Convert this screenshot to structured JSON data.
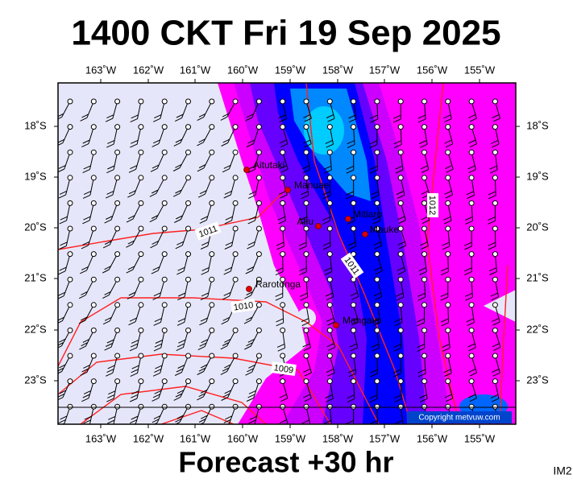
{
  "title": "1400 CKT Fri 19 Sep 2025",
  "map": {
    "lon_labels": [
      "163˚W",
      "162˚W",
      "161˚W",
      "160˚W",
      "159˚W",
      "158˚W",
      "157˚W",
      "156˚W",
      "155˚W"
    ],
    "lat_labels": [
      "18˚S",
      "19˚S",
      "20˚S",
      "21˚S",
      "22˚S",
      "23˚S"
    ],
    "places": [
      "Aitutaki",
      "Manuae",
      "Atiu",
      "Mitiaro",
      "Mauke",
      "Rarotonga",
      "Mangaia"
    ],
    "isobar_labels": [
      "1011",
      "1010",
      "1009",
      "1011",
      "1012"
    ],
    "copyright": "Copyright metvuw.com"
  },
  "footer": {
    "forecast": "Forecast +30 hr",
    "code": "IM2"
  }
}
